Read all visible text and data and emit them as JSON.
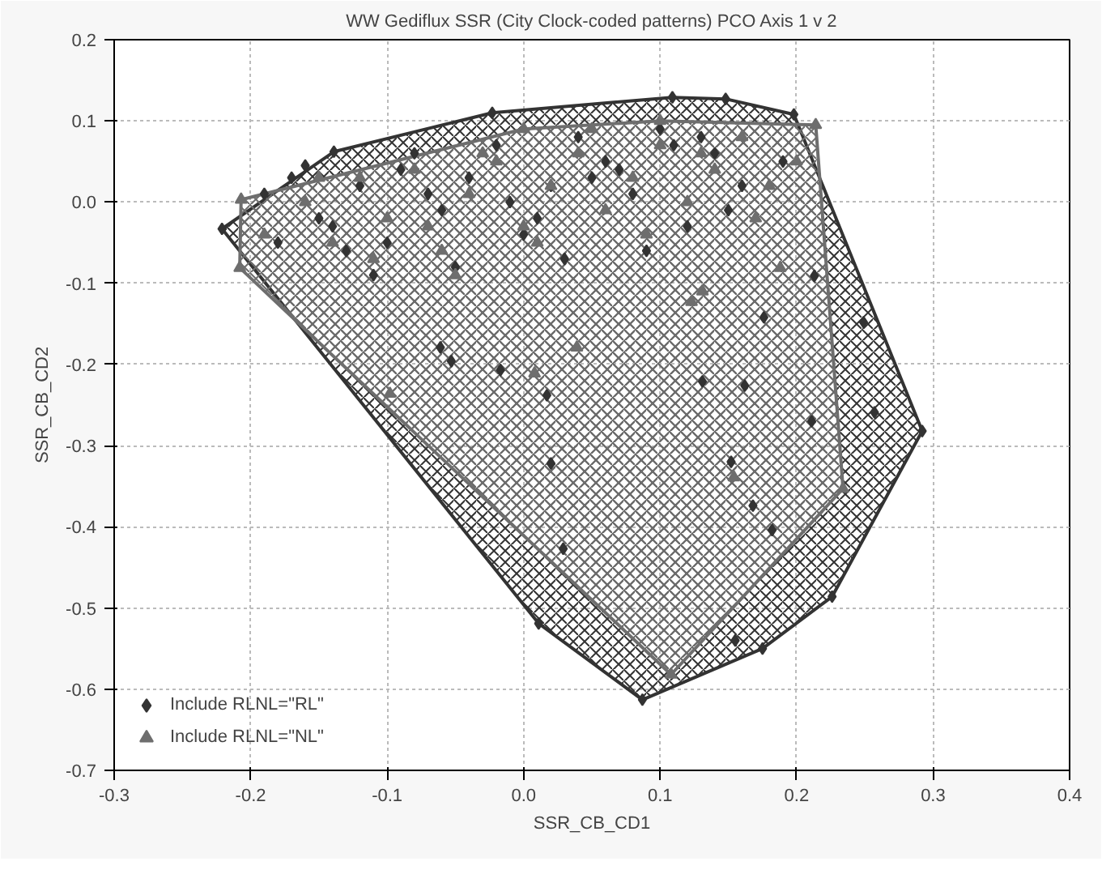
{
  "chart_data": {
    "type": "scatter",
    "title": "WW Gediflux SSR (City Clock-coded patterns) PCO Axis 1 v 2",
    "xlabel": "SSR_CB_CD1",
    "ylabel": "SSR_CB_CD2",
    "xlim": [
      -0.3,
      0.4
    ],
    "ylim": [
      -0.7,
      0.2
    ],
    "xticks": [
      -0.3,
      -0.2,
      -0.1,
      {
        "value": 0,
        "label": "0.0"
      },
      0.1,
      0.2,
      0.3,
      0.4
    ],
    "yticks": [
      -0.7,
      -0.6,
      -0.5,
      -0.4,
      -0.3,
      -0.2,
      -0.1,
      {
        "value": 0,
        "label": "0.0"
      },
      0.1,
      0.2
    ],
    "grid": true,
    "legend": "bottom left",
    "series": [
      {
        "type": "area",
        "color": "#333333",
        "x": [
          -0.221,
          -0.139,
          -0.023,
          0.109,
          0.148,
          0.198,
          0.292,
          0.226,
          0.175,
          0.087,
          0.011,
          -0.221
        ],
        "values": [
          -0.033,
          0.062,
          0.11,
          0.129,
          0.127,
          0.108,
          -0.282,
          -0.486,
          -0.55,
          -0.613,
          -0.519,
          -0.033
        ]
      },
      {
        "type": "area",
        "color": "#6e6e6e",
        "x": [
          -0.208,
          -0.207,
          0.0,
          0.1,
          0.214,
          0.234,
          0.108,
          -0.208
        ],
        "values": [
          -0.081,
          0.003,
          0.09,
          0.1,
          0.095,
          -0.353,
          -0.582,
          -0.081
        ]
      },
      {
        "name": "Include RLNL=\"RL\"",
        "color": "#333333",
        "marker": "diamond",
        "x": [
          -0.221,
          -0.139,
          -0.023,
          0.109,
          0.148,
          0.198,
          0.292,
          0.226,
          0.175,
          0.087,
          0.011,
          -0.053,
          -0.017,
          0.017,
          0.02,
          0.029,
          -0.061,
          0.131,
          0.162,
          0.211,
          0.257,
          0.152,
          0.168,
          0.182,
          0.155,
          0.176,
          0.249,
          0.213,
          -0.19,
          -0.17,
          -0.15,
          -0.16,
          -0.12,
          -0.1,
          -0.08,
          -0.06,
          -0.04,
          -0.02,
          0.0,
          0.02,
          0.04,
          0.06,
          0.08,
          0.1,
          0.12,
          0.14,
          0.16,
          -0.18,
          -0.13,
          -0.09,
          -0.05,
          -0.01,
          0.03,
          0.07,
          0.11,
          0.15,
          0.19,
          -0.14,
          -0.07,
          0.05,
          0.09,
          0.13,
          -0.11,
          0.01
        ],
        "values": [
          -0.033,
          0.062,
          0.11,
          0.129,
          0.127,
          0.108,
          -0.282,
          -0.486,
          -0.55,
          -0.613,
          -0.519,
          -0.196,
          -0.207,
          -0.238,
          -0.322,
          -0.427,
          -0.179,
          -0.221,
          -0.226,
          -0.27,
          -0.259,
          -0.32,
          -0.374,
          -0.404,
          -0.54,
          -0.142,
          -0.148,
          -0.091,
          0.01,
          0.03,
          -0.02,
          0.045,
          0.02,
          -0.05,
          0.06,
          -0.01,
          0.03,
          0.07,
          -0.04,
          0.02,
          0.08,
          0.05,
          0.01,
          0.09,
          -0.03,
          0.06,
          0.02,
          -0.05,
          -0.06,
          0.04,
          -0.08,
          0.0,
          -0.07,
          0.04,
          0.07,
          -0.01,
          0.05,
          -0.03,
          0.01,
          0.03,
          -0.06,
          0.08,
          -0.09,
          -0.02
        ]
      },
      {
        "name": "Include RLNL=\"NL\"",
        "color": "#6e6e6e",
        "marker": "triangle",
        "x": [
          -0.208,
          -0.207,
          0.214,
          0.234,
          0.108,
          -0.098,
          0.039,
          0.008,
          0.154,
          0.131,
          0.123,
          0.188,
          -0.19,
          -0.16,
          -0.14,
          -0.12,
          -0.1,
          -0.08,
          -0.06,
          -0.04,
          -0.02,
          0.0,
          0.02,
          0.04,
          0.06,
          0.08,
          0.1,
          0.12,
          0.14,
          0.16,
          0.18,
          0.2,
          -0.15,
          -0.11,
          -0.07,
          -0.03,
          0.01,
          0.05,
          0.09,
          0.13,
          0.17,
          0.0,
          0.1,
          -0.05
        ],
        "values": [
          -0.081,
          0.003,
          0.095,
          -0.353,
          -0.582,
          -0.236,
          -0.179,
          -0.211,
          -0.339,
          -0.11,
          -0.123,
          -0.081,
          -0.04,
          0.0,
          -0.05,
          0.03,
          -0.02,
          0.04,
          -0.06,
          0.01,
          0.05,
          -0.03,
          0.02,
          0.06,
          -0.01,
          0.03,
          0.07,
          0.0,
          0.04,
          0.08,
          0.02,
          0.05,
          0.03,
          -0.07,
          -0.03,
          0.06,
          -0.05,
          0.09,
          -0.04,
          0.06,
          -0.02,
          0.09,
          0.1,
          -0.09
        ]
      }
    ]
  }
}
